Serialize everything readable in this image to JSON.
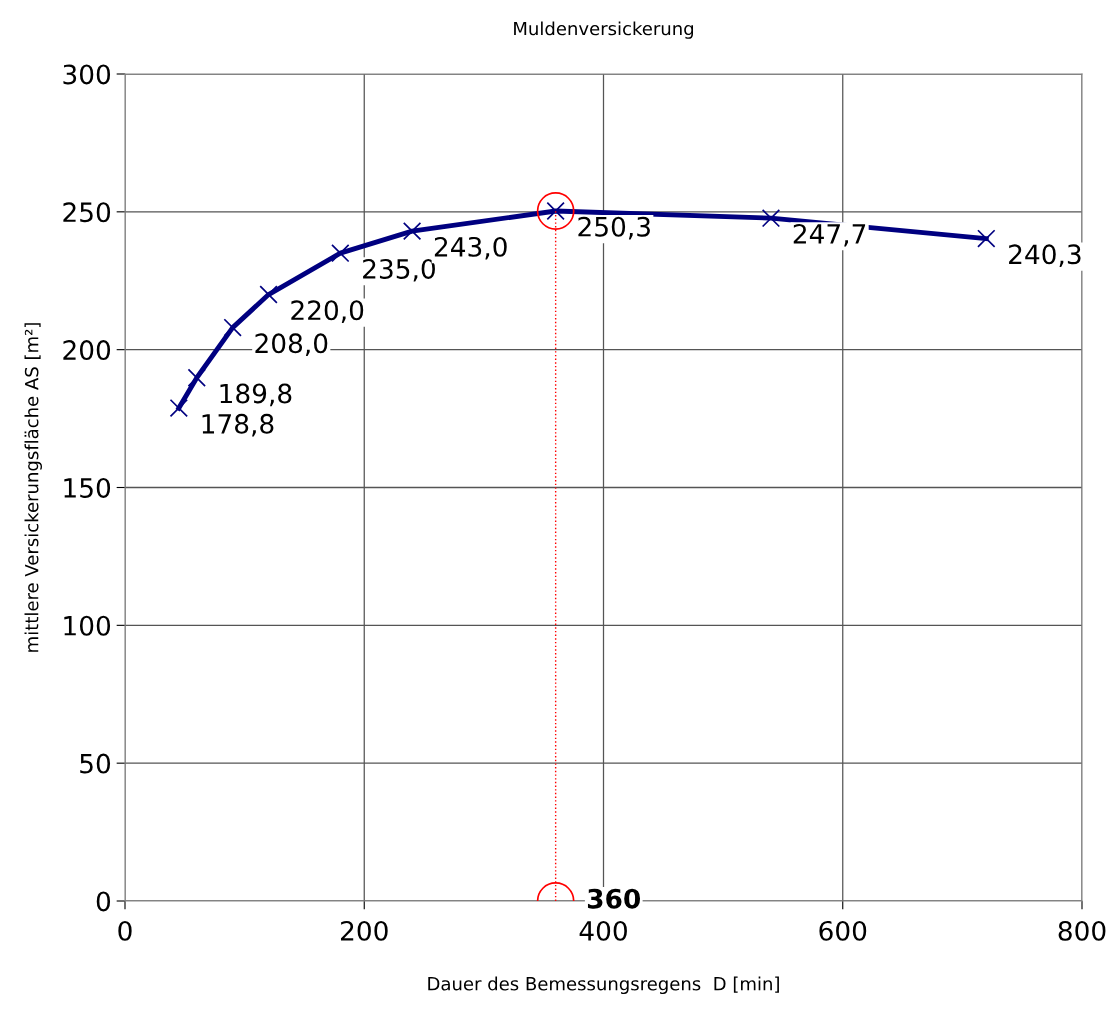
{
  "chart_data": {
    "type": "line",
    "title": "Muldenversickerung",
    "xlabel": "Dauer des Bemessungsregens  D [min]",
    "ylabel": "mittlere Versickerungsfläche AS [m²]",
    "xlim": [
      0,
      800
    ],
    "xticks": [
      0,
      200,
      400,
      600,
      800
    ],
    "ylim": [
      0,
      300
    ],
    "yticks": [
      0,
      50,
      100,
      150,
      200,
      250,
      300
    ],
    "grid": true,
    "series": [
      {
        "color": "#000080",
        "marker": "cross",
        "x": [
          45,
          60,
          90,
          120,
          180,
          240,
          360,
          540,
          720
        ],
        "values": [
          178.8,
          189.8,
          208.0,
          220.0,
          235.0,
          243.0,
          250.3,
          247.7,
          240.3
        ],
        "value_labels": [
          "178,8",
          "189,8",
          "208,0",
          "220,0",
          "235,0",
          "243,0",
          "250,3",
          "247,7",
          "240,3"
        ]
      },
      {
        "color": "#ff0000",
        "marker": "circle",
        "line_style": "dotted",
        "x": [
          360,
          360
        ],
        "values": [
          0,
          250.3
        ]
      }
    ],
    "annotations": [
      {
        "text": "360",
        "x": 360,
        "y": 0
      }
    ]
  }
}
